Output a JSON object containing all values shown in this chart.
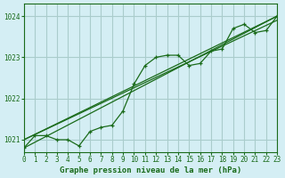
{
  "title": "Graphe pression niveau de la mer (hPa)",
  "bg_color": "#d4eef4",
  "grid_color": "#aacccc",
  "line_color": "#1a6b1a",
  "xlim": [
    0,
    23
  ],
  "ylim": [
    1020.7,
    1024.3
  ],
  "yticks": [
    1021,
    1022,
    1023,
    1024
  ],
  "xticks": [
    0,
    1,
    2,
    3,
    4,
    5,
    6,
    7,
    8,
    9,
    10,
    11,
    12,
    13,
    14,
    15,
    16,
    17,
    18,
    19,
    20,
    21,
    22,
    23
  ],
  "series1": {
    "x": [
      0,
      1,
      2,
      3,
      4,
      5,
      6,
      7,
      8,
      9,
      10,
      11,
      12,
      13,
      14,
      15,
      16,
      17,
      18,
      19,
      20,
      21,
      22,
      23
    ],
    "y": [
      1020.8,
      1021.1,
      1021.1,
      1021.0,
      1021.0,
      1020.85,
      1021.2,
      1021.3,
      1021.35,
      1021.7,
      1022.35,
      1022.8,
      1023.0,
      1023.05,
      1023.05,
      1022.8,
      1022.85,
      1023.15,
      1023.2,
      1023.7,
      1023.8,
      1023.6,
      1023.65,
      1024.0
    ]
  },
  "series2": {
    "x": [
      0,
      23
    ],
    "y": [
      1020.8,
      1024.0
    ]
  },
  "series3": {
    "x": [
      0,
      23
    ],
    "y": [
      1021.0,
      1024.0
    ]
  },
  "series4": {
    "x": [
      0,
      23
    ],
    "y": [
      1021.0,
      1023.9
    ]
  }
}
